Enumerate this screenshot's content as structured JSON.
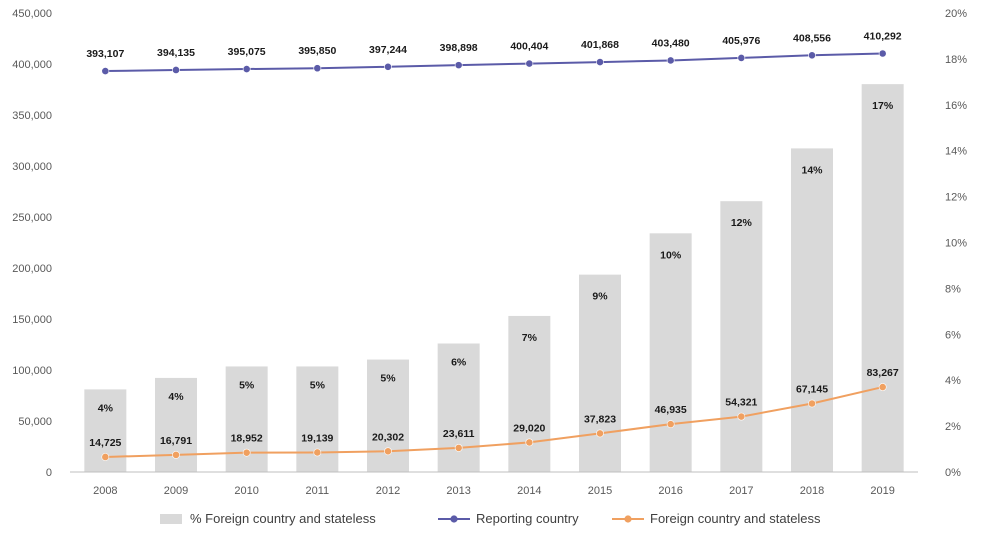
{
  "chart_data": {
    "type": "bar",
    "categories": [
      "2008",
      "2009",
      "2010",
      "2011",
      "2012",
      "2013",
      "2014",
      "2015",
      "2016",
      "2017",
      "2018",
      "2019"
    ],
    "y_left": {
      "ylim": [
        0,
        450000
      ],
      "ticks": [
        "0",
        "50,000",
        "100,000",
        "150,000",
        "200,000",
        "250,000",
        "300,000",
        "350,000",
        "400,000",
        "450,000"
      ]
    },
    "y_right": {
      "ylim": [
        0,
        20
      ],
      "ticks": [
        "0%",
        "2%",
        "4%",
        "6%",
        "8%",
        "10%",
        "12%",
        "14%",
        "16%",
        "18%",
        "20%"
      ]
    },
    "series": [
      {
        "name": "% Foreign country and stateless",
        "kind": "bar",
        "axis": "right",
        "color": "#d9d9d9",
        "values": [
          3.6,
          4.1,
          4.6,
          4.6,
          4.9,
          5.6,
          6.8,
          8.6,
          10.4,
          11.8,
          14.1,
          16.9
        ],
        "labels": [
          "4%",
          "4%",
          "5%",
          "5%",
          "5%",
          "6%",
          "7%",
          "9%",
          "10%",
          "12%",
          "14%",
          "17%"
        ]
      },
      {
        "name": "Reporting country",
        "kind": "line",
        "axis": "left",
        "color": "#5b5ba8",
        "values": [
          393107,
          394135,
          395075,
          395850,
          397244,
          398898,
          400404,
          401868,
          403480,
          405976,
          408556,
          410292
        ],
        "labels": [
          "393,107",
          "394,135",
          "395,075",
          "395,850",
          "397,244",
          "398,898",
          "400,404",
          "401,868",
          "403,480",
          "405,976",
          "408,556",
          "410,292"
        ]
      },
      {
        "name": "Foreign country and stateless",
        "kind": "line",
        "axis": "left",
        "color": "#f0a060",
        "values": [
          14725,
          16791,
          18952,
          19139,
          20302,
          23611,
          29020,
          37823,
          46935,
          54321,
          67145,
          83267
        ],
        "labels": [
          "14,725",
          "16,791",
          "18,952",
          "19,139",
          "20,302",
          "23,611",
          "29,020",
          "37,823",
          "46,935",
          "54,321",
          "67,145",
          "83,267"
        ]
      }
    ],
    "legend": {
      "position": "bottom",
      "items": [
        "% Foreign country and stateless",
        "Reporting country",
        "Foreign country and stateless"
      ]
    },
    "grid": false
  }
}
